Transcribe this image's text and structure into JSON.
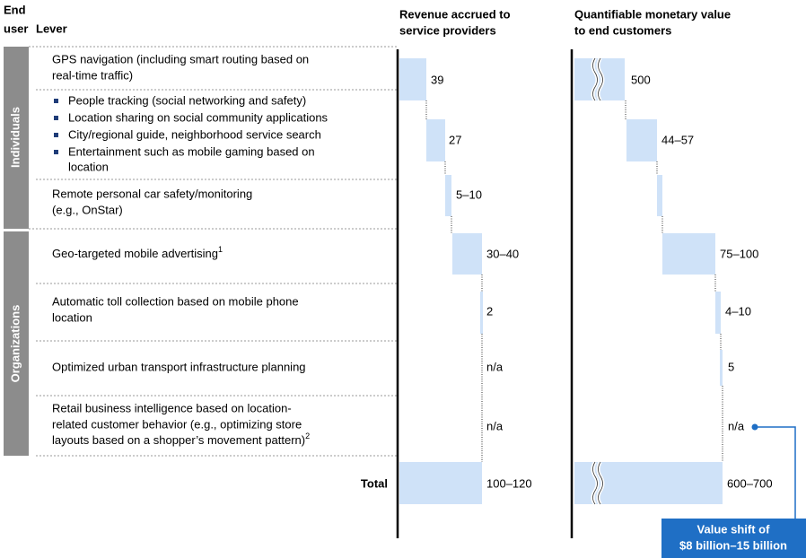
{
  "header": {
    "end_user": [
      "End",
      "user"
    ],
    "lever": "Lever",
    "revenue": [
      "Revenue accrued to",
      "service providers"
    ],
    "value": [
      "Quantifiable monetary value",
      "to end customers"
    ]
  },
  "groups": [
    "Individuals",
    "Organizations"
  ],
  "rows": [
    {
      "lever": [
        "GPS navigation (including smart routing based on",
        "real-time traffic)"
      ],
      "revenue": "39",
      "value": "500"
    },
    {
      "lever": [
        "People tracking (social networking and safety)",
        "Location sharing on social community applications",
        "City/regional guide, neighborhood service search",
        "Entertainment such as mobile gaming based on",
        "location"
      ],
      "revenue": "27",
      "value": "44–57"
    },
    {
      "lever": [
        "Remote personal car safety/monitoring",
        "(e.g., OnStar)"
      ],
      "revenue": "5–10"
    },
    {
      "lever": [
        "Geo-targeted mobile advertising"
      ],
      "footnote": "1",
      "revenue": "30–40",
      "value": "75–100"
    },
    {
      "lever": [
        "Automatic toll collection based on mobile phone",
        "location"
      ],
      "revenue": "2",
      "value": "4–10"
    },
    {
      "lever": [
        "Optimized urban transport infrastructure planning"
      ],
      "revenue": "n/a",
      "value": "5"
    },
    {
      "lever": [
        "Retail business intelligence based on location-",
        "related customer behavior (e.g., optimizing store",
        "layouts based on a shopper’s movement pattern)"
      ],
      "footnote": "2",
      "revenue": "n/a",
      "value": "n/a"
    }
  ],
  "total": {
    "label": "Total",
    "revenue": "100–120",
    "value": "600–700"
  },
  "callout": [
    "Value shift of",
    "$8 billion–15 billion"
  ]
}
